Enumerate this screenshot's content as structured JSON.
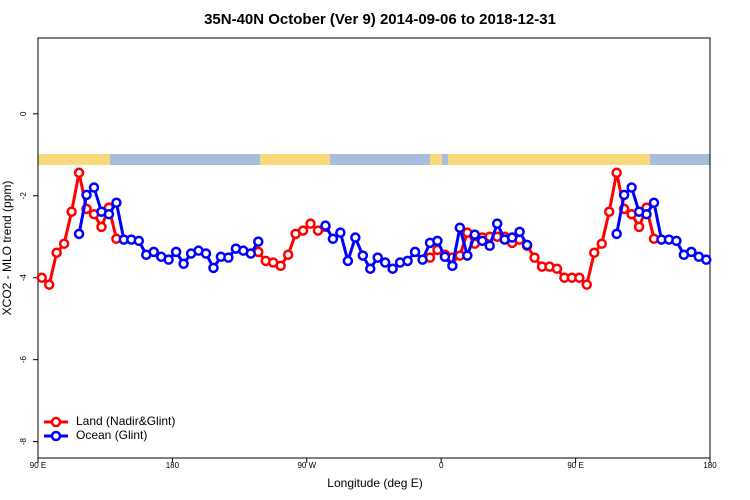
{
  "chart_data": {
    "type": "line",
    "title": "35N-40N October (Ver 9)   2014-09-06 to 2018-12-31",
    "x_label": "Longitude (deg E)",
    "y_label": "XCO2 - MLO trend (ppm)",
    "xlim": [
      90,
      540
    ],
    "xticks": [
      {
        "value": 90,
        "label": "90 E"
      },
      {
        "value": 180,
        "label": "180"
      },
      {
        "value": 270,
        "label": "90 W"
      },
      {
        "value": 360,
        "label": "0"
      },
      {
        "value": 450,
        "label": "90 E"
      },
      {
        "value": 540,
        "label": "180"
      }
    ],
    "ylim": [
      -8.4,
      1.85
    ],
    "yticks": [
      0,
      -2,
      -4,
      -6,
      -8
    ],
    "legend": "lower left",
    "x": [
      92.5,
      97.5,
      102.5,
      107.5,
      112.5,
      117.5,
      122.5,
      127.5,
      132.5,
      137.5,
      142.5,
      147.5,
      152.5,
      157.5,
      162.5,
      167.5,
      172.5,
      177.5,
      182.5,
      187.5,
      192.5,
      197.5,
      202.5,
      207.5,
      212.5,
      217.5,
      222.5,
      227.5,
      232.5,
      237.5,
      242.5,
      247.5,
      252.5,
      257.5,
      262.5,
      267.5,
      272.5,
      277.5,
      282.5,
      287.5,
      292.5,
      297.5,
      302.5,
      307.5,
      312.5,
      317.5,
      322.5,
      327.5,
      332.5,
      337.5,
      342.5,
      347.5,
      352.5,
      357.5,
      362.5,
      367.5,
      372.5,
      377.5,
      382.5,
      387.5,
      392.5,
      397.5,
      402.5,
      407.5,
      412.5,
      417.5,
      422.5,
      427.5,
      432.5,
      437.5,
      442.5,
      447.5,
      452.5,
      457.5,
      462.5,
      467.5,
      472.5,
      477.5,
      482.5,
      487.5,
      492.5,
      497.5,
      502.5,
      507.5,
      512.5,
      517.5,
      522.5,
      527.5,
      532.5,
      537.5
    ],
    "series": [
      {
        "name": "Land (Nadir&Glint)",
        "color": "#ff0000",
        "values": [
          -4.0,
          -4.17,
          -3.39,
          -3.17,
          -2.39,
          -1.44,
          -2.32,
          -2.45,
          -2.76,
          -2.29,
          -3.05,
          null,
          null,
          null,
          null,
          null,
          null,
          null,
          null,
          null,
          null,
          null,
          null,
          null,
          null,
          null,
          null,
          null,
          null,
          -3.37,
          -3.59,
          -3.63,
          -3.71,
          -3.44,
          -2.93,
          -2.85,
          -2.68,
          -2.85,
          -2.76,
          null,
          null,
          null,
          null,
          null,
          null,
          null,
          null,
          null,
          null,
          null,
          null,
          null,
          -3.51,
          -3.32,
          -3.44,
          -3.51,
          -3.46,
          -2.9,
          -3.17,
          -3.02,
          -3.0,
          -3.0,
          -3.0,
          -3.15,
          -3.07,
          -3.22,
          -3.51,
          -3.73,
          -3.73,
          -3.78,
          -4.0,
          -4.0,
          -4.0,
          -4.17,
          -3.39,
          -3.17,
          -2.39,
          -1.44,
          -2.32,
          -2.45,
          -2.76,
          -2.29,
          -3.05,
          null,
          null,
          null,
          null,
          null,
          null,
          null
        ]
      },
      {
        "name": "Ocean (Glint)",
        "color": "#0000ff",
        "values": [
          null,
          null,
          null,
          null,
          null,
          -2.93,
          -1.98,
          -1.8,
          -2.39,
          -2.45,
          -2.17,
          -3.07,
          -3.07,
          -3.1,
          -3.44,
          -3.37,
          -3.49,
          -3.56,
          -3.37,
          -3.66,
          -3.41,
          -3.34,
          -3.41,
          -3.76,
          -3.49,
          -3.51,
          -3.29,
          -3.34,
          -3.41,
          -3.12,
          null,
          null,
          null,
          null,
          null,
          null,
          null,
          null,
          -2.73,
          -3.05,
          -2.9,
          -3.59,
          -3.02,
          -3.46,
          -3.78,
          -3.51,
          -3.63,
          -3.78,
          -3.63,
          -3.59,
          -3.37,
          -3.56,
          -3.15,
          -3.1,
          -3.49,
          -3.71,
          -2.78,
          -3.46,
          -2.95,
          -3.1,
          -3.22,
          -2.68,
          -3.07,
          -3.02,
          -2.88,
          -3.2,
          null,
          null,
          null,
          null,
          null,
          null,
          null,
          null,
          null,
          null,
          null,
          -2.93,
          -1.98,
          -1.8,
          -2.39,
          -2.45,
          -2.17,
          -3.07,
          -3.07,
          -3.1,
          -3.44,
          -3.37,
          -3.49,
          -3.56
        ]
      }
    ]
  }
}
